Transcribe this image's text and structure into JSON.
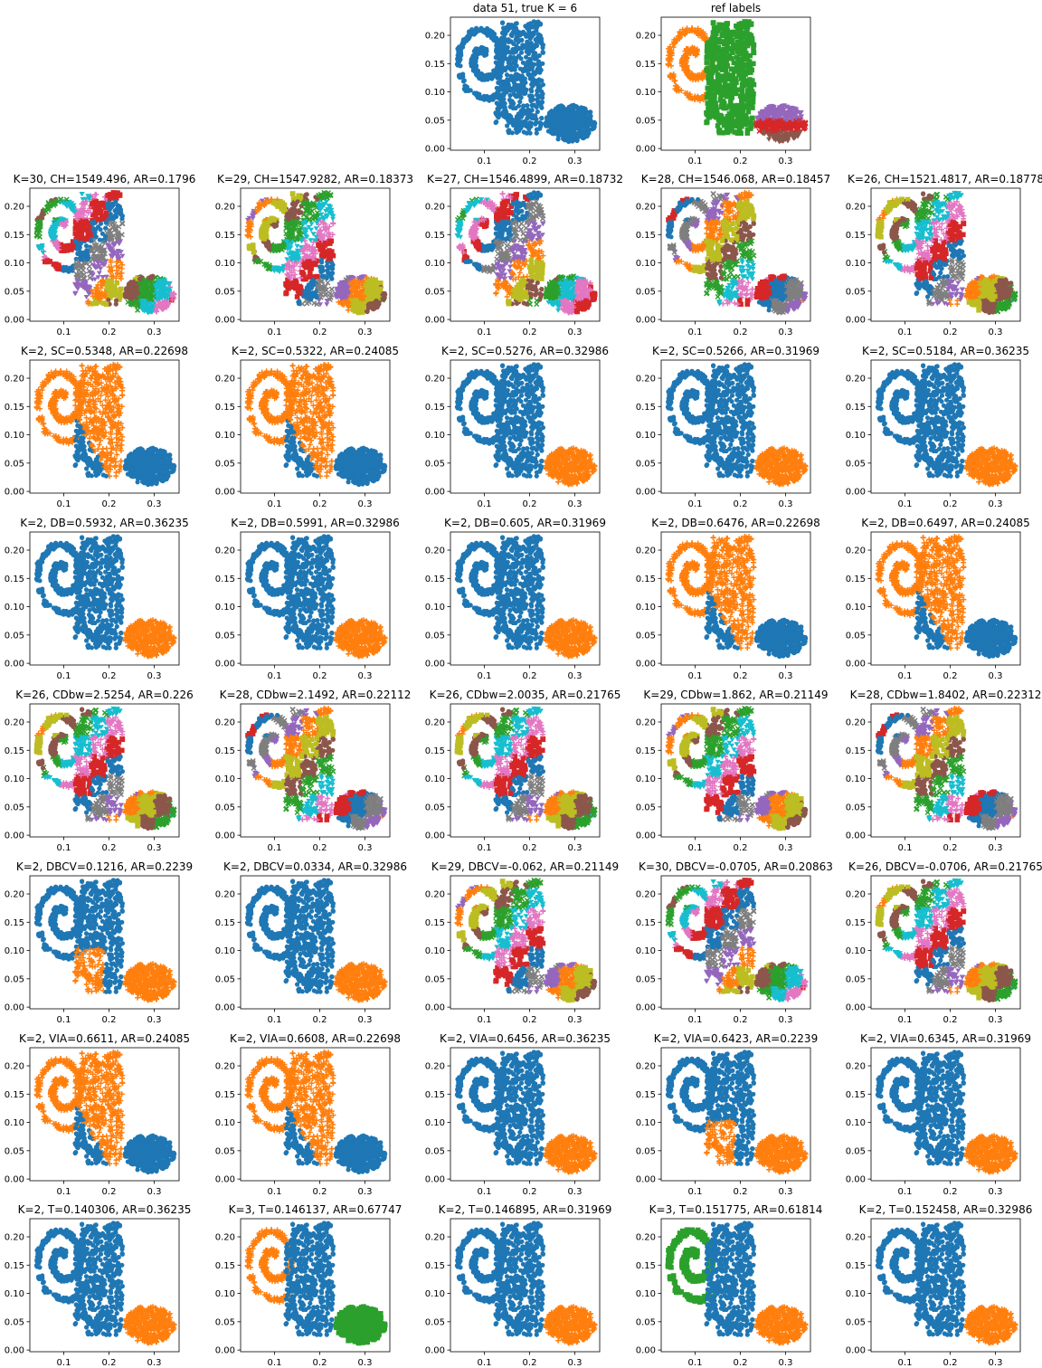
{
  "chart_data": {
    "type": "scatter",
    "layout": "8 rows x 5 columns small multiples",
    "x_ticks": [
      0.1,
      0.2,
      0.3
    ],
    "y_ticks": [
      0.0,
      0.05,
      0.1,
      0.15,
      0.2
    ],
    "xlim": [
      0.025,
      0.355
    ],
    "ylim": [
      -0.003,
      0.232
    ],
    "palette": [
      "#1f77b4",
      "#ff7f0e",
      "#2ca02c",
      "#d62728",
      "#9467bd",
      "#8c564b",
      "#e377c2",
      "#7f7f7f",
      "#bcbd22",
      "#17becf"
    ],
    "panels": [
      {
        "title": "data 51, true K = 6",
        "k": 1,
        "style": "single"
      },
      {
        "title": "ref labels",
        "k": 6,
        "style": "ref"
      },
      {
        "title": "K=30, CH=1549.496, AR=0.1796",
        "k": 30,
        "style": "many"
      },
      {
        "title": "K=29, CH=1547.9282, AR=0.18373",
        "k": 29,
        "style": "many"
      },
      {
        "title": "K=27, CH=1546.4899, AR=0.18732",
        "k": 27,
        "style": "many"
      },
      {
        "title": "K=28, CH=1546.068, AR=0.18457",
        "k": 28,
        "style": "many"
      },
      {
        "title": "K=26, CH=1521.4817, AR=0.18778",
        "k": 26,
        "style": "many"
      },
      {
        "title": "K=2, SC=0.5348, AR=0.22698",
        "k": 2,
        "style": "A"
      },
      {
        "title": "K=2, SC=0.5322, AR=0.24085",
        "k": 2,
        "style": "A"
      },
      {
        "title": "K=2, SC=0.5276, AR=0.32986",
        "k": 2,
        "style": "B"
      },
      {
        "title": "K=2, SC=0.5266, AR=0.31969",
        "k": 2,
        "style": "B"
      },
      {
        "title": "K=2, SC=0.5184, AR=0.36235",
        "k": 2,
        "style": "B"
      },
      {
        "title": "K=2, DB=0.5932, AR=0.36235",
        "k": 2,
        "style": "B"
      },
      {
        "title": "K=2, DB=0.5991, AR=0.32986",
        "k": 2,
        "style": "B"
      },
      {
        "title": "K=2, DB=0.605, AR=0.31969",
        "k": 2,
        "style": "B"
      },
      {
        "title": "K=2, DB=0.6476, AR=0.22698",
        "k": 2,
        "style": "A"
      },
      {
        "title": "K=2, DB=0.6497, AR=0.24085",
        "k": 2,
        "style": "A"
      },
      {
        "title": "K=26, CDbw=2.5254, AR=0.226",
        "k": 26,
        "style": "many"
      },
      {
        "title": "K=28, CDbw=2.1492, AR=0.22112",
        "k": 28,
        "style": "many"
      },
      {
        "title": "K=26, CDbw=2.0035, AR=0.21765",
        "k": 26,
        "style": "many"
      },
      {
        "title": "K=29, CDbw=1.862, AR=0.21149",
        "k": 29,
        "style": "many"
      },
      {
        "title": "K=28, CDbw=1.8402, AR=0.22312",
        "k": 28,
        "style": "many"
      },
      {
        "title": "K=2, DBCV=0.1216, AR=0.2239",
        "k": 2,
        "style": "C"
      },
      {
        "title": "K=2, DBCV=0.0334, AR=0.32986",
        "k": 2,
        "style": "B"
      },
      {
        "title": "K=29, DBCV=-0.062, AR=0.21149",
        "k": 29,
        "style": "many"
      },
      {
        "title": "K=30, DBCV=-0.0705, AR=0.20863",
        "k": 30,
        "style": "many"
      },
      {
        "title": "K=26, DBCV=-0.0706, AR=0.21765",
        "k": 26,
        "style": "many"
      },
      {
        "title": "K=2, VIA=0.6611, AR=0.24085",
        "k": 2,
        "style": "A"
      },
      {
        "title": "K=2, VIA=0.6608, AR=0.22698",
        "k": 2,
        "style": "A"
      },
      {
        "title": "K=2, VIA=0.6456, AR=0.36235",
        "k": 2,
        "style": "B"
      },
      {
        "title": "K=2, VIA=0.6423, AR=0.2239",
        "k": 2,
        "style": "C"
      },
      {
        "title": "K=2, VIA=0.6345, AR=0.31969",
        "k": 2,
        "style": "B"
      },
      {
        "title": "K=2, T=0.140306, AR=0.36235",
        "k": 2,
        "style": "B"
      },
      {
        "title": "K=3, T=0.146137, AR=0.67747",
        "k": 3,
        "style": "K3a"
      },
      {
        "title": "K=2, T=0.146895, AR=0.31969",
        "k": 2,
        "style": "B"
      },
      {
        "title": "K=3, T=0.151775, AR=0.61814",
        "k": 3,
        "style": "K3b"
      },
      {
        "title": "K=2, T=0.152458, AR=0.32986",
        "k": 2,
        "style": "B"
      }
    ]
  }
}
